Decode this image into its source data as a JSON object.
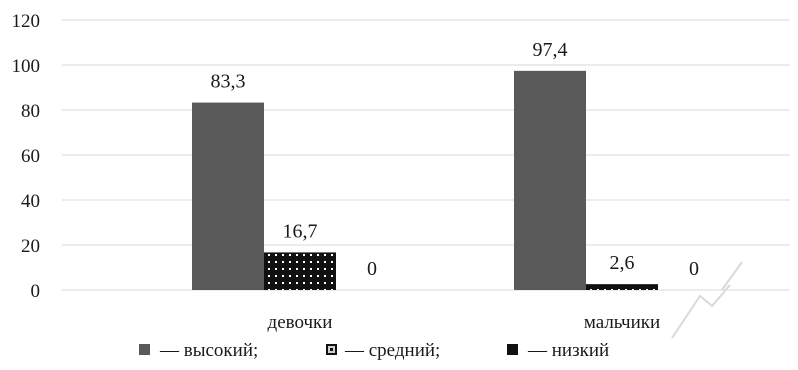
{
  "chart_data": {
    "type": "bar",
    "categories": [
      "девочки",
      "мальчики"
    ],
    "series": [
      {
        "name": "высокий",
        "values": [
          83.3,
          97.4
        ],
        "labels": [
          "83,3",
          "97,4"
        ],
        "color": "#595959",
        "pattern": "solid"
      },
      {
        "name": "средний",
        "values": [
          16.7,
          2.6
        ],
        "labels": [
          "16,7",
          "2,6"
        ],
        "color": "#111111",
        "pattern": "dotted"
      },
      {
        "name": "низкий",
        "values": [
          0,
          0
        ],
        "labels": [
          "0",
          "0"
        ],
        "color": "#111111",
        "pattern": "solid"
      }
    ],
    "legend_labels": [
      "— высокий;",
      "— средний;",
      "— низкий"
    ],
    "yticks": [
      "0",
      "20",
      "40",
      "60",
      "80",
      "100",
      "120"
    ],
    "ylim": [
      0,
      120
    ],
    "grid": true,
    "legend_position": "bottom",
    "title": "",
    "xlabel": "",
    "ylabel": ""
  }
}
